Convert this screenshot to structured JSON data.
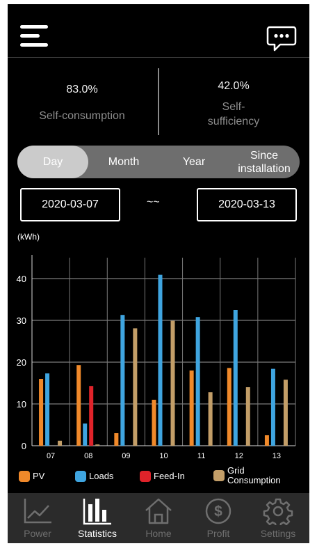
{
  "stats": {
    "self_consumption": {
      "value": "83.0%",
      "label": "Self-consumption"
    },
    "self_sufficiency": {
      "value": "42.0%",
      "label": "Self-sufficiency"
    }
  },
  "tabs": [
    "Day",
    "Month",
    "Year",
    "Since installation"
  ],
  "active_tab": "Day",
  "date_range": {
    "start": "2020-03-07",
    "separator": "~~",
    "end": "2020-03-13"
  },
  "icons": {
    "menu": "hamburger-menu-icon",
    "messages": "chat-bubble-icon"
  },
  "chart_data": {
    "type": "bar",
    "ylabel": "(kWh)",
    "ylim": [
      0,
      45
    ],
    "yticks": [
      0,
      10,
      20,
      30,
      40
    ],
    "grid": true,
    "categories": [
      "07",
      "08",
      "09",
      "10",
      "11",
      "12",
      "13"
    ],
    "series": [
      {
        "name": "PV",
        "color": "#f0892a",
        "values": [
          16.0,
          19.3,
          3.0,
          11.0,
          18.0,
          18.6,
          2.5
        ]
      },
      {
        "name": "Loads",
        "color": "#3fa5e0",
        "values": [
          17.3,
          5.3,
          31.3,
          40.9,
          30.8,
          32.5,
          18.4
        ]
      },
      {
        "name": "Feed-In",
        "color": "#e0232a",
        "values": [
          0,
          14.3,
          0,
          0,
          0,
          0,
          0
        ]
      },
      {
        "name": "Grid Consumption",
        "color": "#c39e68",
        "values": [
          1.2,
          0.3,
          28.1,
          29.9,
          12.8,
          14.0,
          15.8
        ]
      }
    ]
  },
  "legend": [
    "PV",
    "Loads",
    "Feed-In",
    "Grid Consumption"
  ],
  "nav": [
    {
      "label": "Power",
      "icon": "line-chart-icon"
    },
    {
      "label": "Statistics",
      "icon": "bar-chart-icon"
    },
    {
      "label": "Home",
      "icon": "house-icon"
    },
    {
      "label": "Profit",
      "icon": "dollar-coin-icon"
    },
    {
      "label": "Settings",
      "icon": "gear-icon"
    }
  ],
  "active_nav": "Statistics"
}
